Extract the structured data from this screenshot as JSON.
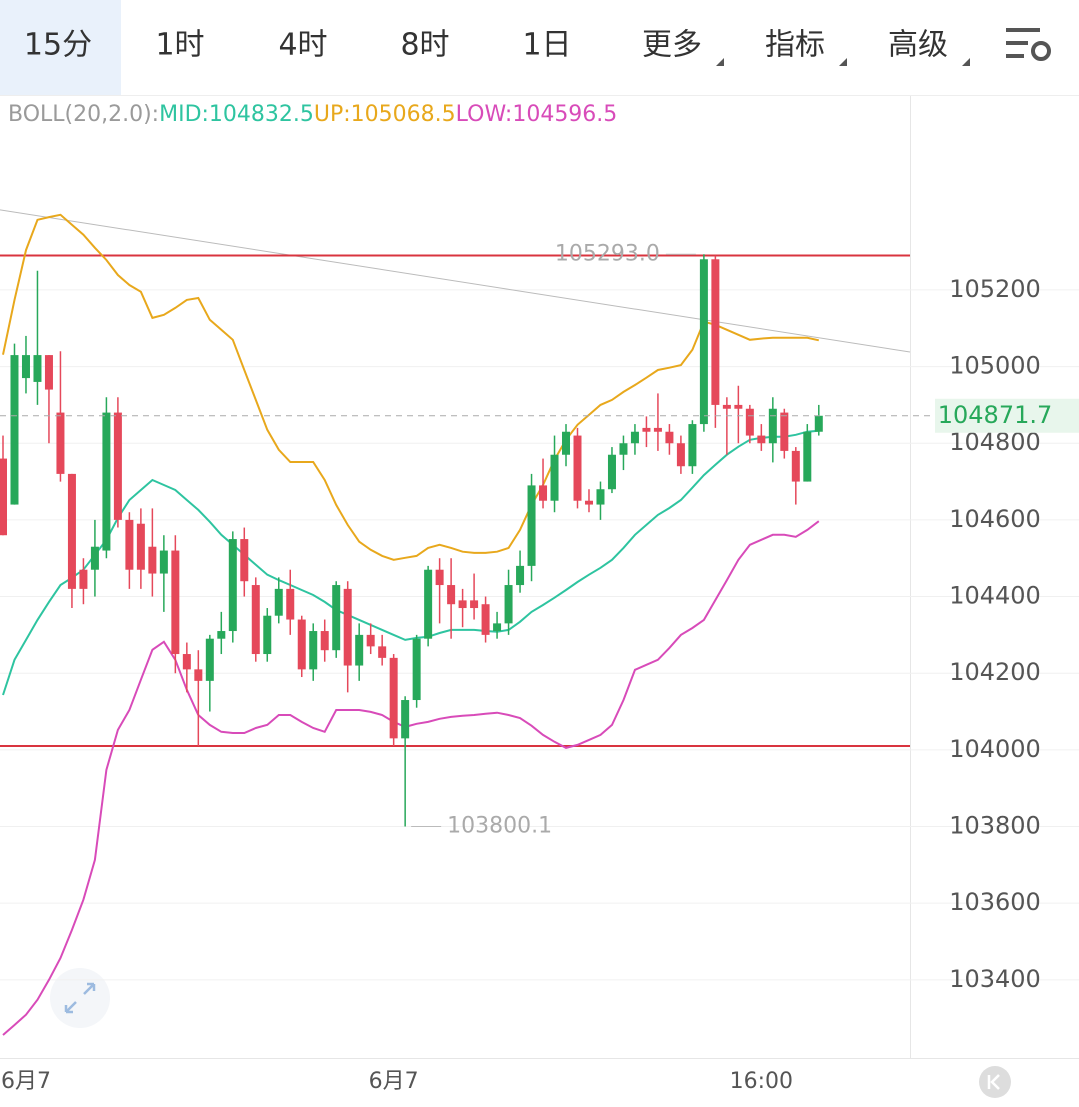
{
  "tabs": [
    "15分",
    "1时",
    "4时",
    "8时",
    "1日",
    "更多",
    "指标",
    "高级"
  ],
  "chart_data": {
    "type": "candlestick",
    "legend": [
      {
        "text": "BOLL(20,2.0):",
        "color": "#9a9a9a"
      },
      {
        "text": "MID:104832.5",
        "color": "#2ec4a0"
      },
      {
        "text": "UP:105068.5",
        "color": "#e8a81c"
      },
      {
        "text": "LOW:104596.5",
        "color": "#d84bb9"
      }
    ],
    "categories": [
      null,
      null,
      "6月7",
      null,
      null,
      null,
      null,
      null,
      null,
      null,
      null,
      null,
      null,
      null,
      null,
      null,
      null,
      null,
      null,
      null,
      null,
      null,
      null,
      null,
      null,
      null,
      null,
      null,
      null,
      null,
      null,
      null,
      null,
      null,
      "6月7",
      null,
      null,
      null,
      null,
      null,
      null,
      null,
      null,
      null,
      null,
      null,
      null,
      null,
      null,
      null,
      null,
      null,
      null,
      null,
      null,
      null,
      null,
      null,
      null,
      null,
      null,
      null,
      null,
      null,
      null,
      null,
      "16:00",
      null,
      null,
      null,
      null,
      null
    ],
    "open": [
      104760,
      104640,
      104970,
      104960,
      105030,
      104880,
      104720,
      104470,
      104470,
      104520,
      104880,
      104600,
      104590,
      104530,
      104460,
      104520,
      104250,
      104210,
      104180,
      104290,
      104310,
      104550,
      104430,
      104250,
      104350,
      104420,
      104340,
      104210,
      104310,
      104260,
      104420,
      104220,
      104300,
      104270,
      104240,
      104030,
      104130,
      104290,
      104470,
      104430,
      104390,
      104390,
      104380,
      104310,
      104330,
      104430,
      104480,
      104690,
      104650,
      104770,
      104820,
      104650,
      104640,
      104680,
      104770,
      104800,
      104840,
      104840,
      104830,
      104800,
      104740,
      104850,
      105280,
      104900,
      104900,
      104890,
      104820,
      104800,
      104880,
      104780,
      104700,
      104830
    ],
    "close": [
      104560,
      105030,
      105030,
      105030,
      104940,
      104720,
      104420,
      104420,
      104530,
      104880,
      104600,
      104470,
      104470,
      104460,
      104520,
      104250,
      104210,
      104180,
      104290,
      104310,
      104550,
      104440,
      104250,
      104350,
      104420,
      104340,
      104210,
      104310,
      104260,
      104430,
      104220,
      104300,
      104270,
      104240,
      104030,
      104130,
      104290,
      104470,
      104430,
      104380,
      104370,
      104370,
      104300,
      104330,
      104430,
      104480,
      104690,
      104650,
      104770,
      104830,
      104650,
      104640,
      104680,
      104770,
      104800,
      104830,
      104830,
      104830,
      104800,
      104740,
      104850,
      105280,
      104900,
      104890,
      104890,
      104820,
      104800,
      104890,
      104780,
      104700,
      104830,
      104871.7
    ],
    "high": [
      104820,
      105060,
      105080,
      105250,
      105030,
      105040,
      104720,
      104500,
      104600,
      104920,
      104920,
      104620,
      104630,
      104630,
      104560,
      104560,
      104280,
      104260,
      104300,
      104360,
      104570,
      104580,
      104450,
      104370,
      104450,
      104470,
      104350,
      104330,
      104340,
      104440,
      104440,
      104330,
      104330,
      104300,
      104250,
      104140,
      104300,
      104480,
      104500,
      104500,
      104420,
      104460,
      104400,
      104360,
      104470,
      104520,
      104720,
      104760,
      104820,
      104850,
      104840,
      104680,
      104700,
      104790,
      104820,
      104850,
      104870,
      104930,
      104850,
      104820,
      104860,
      105293,
      105290,
      104920,
      104950,
      104900,
      104850,
      104920,
      104890,
      104790,
      104850,
      104900
    ],
    "low": [
      104560,
      104640,
      104930,
      104900,
      104800,
      104700,
      104370,
      104380,
      104400,
      104500,
      104580,
      104420,
      104420,
      104400,
      104360,
      104200,
      104150,
      104010,
      104100,
      104250,
      104280,
      104400,
      104230,
      104230,
      104330,
      104300,
      104190,
      104180,
      104230,
      104240,
      104150,
      104180,
      104250,
      104220,
      104010,
      103800.1,
      104110,
      104270,
      104330,
      104290,
      104320,
      104340,
      104280,
      104290,
      104300,
      104410,
      104440,
      104630,
      104620,
      104740,
      104630,
      104620,
      104600,
      104670,
      104730,
      104770,
      104790,
      104780,
      104770,
      104720,
      104720,
      104830,
      104840,
      104770,
      104800,
      104800,
      104780,
      104750,
      104760,
      104640,
      104700,
      104820
    ],
    "up_color": "#27a85a",
    "down_color": "#e5485a",
    "bands": [
      {
        "color": "#2ec4a0",
        "values": [
          104143,
          104235,
          104287,
          104339,
          104386,
          104430,
          104449,
          104470,
          104509,
          104548,
          104605,
          104652,
          104678,
          104704,
          104691,
          104678,
          104652,
          104626,
          104595,
          104561,
          104535,
          104509,
          104483,
          104457,
          104443,
          104430,
          104417,
          104404,
          104386,
          104365,
          104352,
          104339,
          104326,
          104313,
          104300,
          104287,
          104292,
          104295,
          104305,
          104313,
          104313,
          104313,
          104310,
          104308,
          104313,
          104334,
          104360,
          104378,
          104397,
          104417,
          104438,
          104457,
          104475,
          104496,
          104527,
          104561,
          104587,
          104613,
          104631,
          104652,
          104684,
          104717,
          104744,
          104770,
          104791,
          104809,
          104814,
          104817,
          104817,
          104822,
          104830,
          104832.5
        ]
      },
      {
        "color": "#e8a81c",
        "values": [
          105031,
          105174,
          105304,
          105383,
          105390,
          105396,
          105370,
          105344,
          105310,
          105278,
          105239,
          105213,
          105195,
          105127,
          105135,
          105153,
          105174,
          105179,
          105122,
          105096,
          105070,
          104991,
          104913,
          104835,
          104783,
          104751,
          104751,
          104751,
          104704,
          104639,
          104587,
          104543,
          104522,
          104506,
          104496,
          104501,
          104506,
          104527,
          104535,
          104527,
          104517,
          104514,
          104514,
          104517,
          104527,
          104574,
          104639,
          104691,
          104757,
          104809,
          104848,
          104874,
          104900,
          104913,
          104934,
          104952,
          104971,
          104991,
          104997,
          105004,
          105044,
          105117,
          105109,
          105096,
          105083,
          105070,
          105073,
          105075,
          105075,
          105075,
          105075,
          105068.5
        ]
      },
      {
        "color": "#d84bb9",
        "values": [
          103256,
          103282,
          103309,
          103348,
          103400,
          103457,
          103530,
          103609,
          103713,
          103948,
          104052,
          104104,
          104183,
          104261,
          104282,
          104235,
          104157,
          104091,
          104065,
          104047,
          104044,
          104044,
          104057,
          104065,
          104091,
          104091,
          104073,
          104057,
          104047,
          104104,
          104104,
          104104,
          104099,
          104091,
          104073,
          104060,
          104068,
          104073,
          104081,
          104086,
          104089,
          104091,
          104094,
          104097,
          104091,
          104083,
          104063,
          104039,
          104021,
          104005,
          104013,
          104026,
          104039,
          104065,
          104130,
          104209,
          104222,
          104235,
          104266,
          104300,
          104318,
          104339,
          104391,
          104443,
          104496,
          104535,
          104548,
          104561,
          104561,
          104556,
          104574,
          104596.5
        ]
      }
    ],
    "hlines": [
      105290,
      104010
    ],
    "hline_color": "#d9343f",
    "trendline": [
      105409,
      105038
    ],
    "annotations": [
      {
        "value": 105293,
        "label": "105293.0"
      },
      {
        "value": 103800.1,
        "label": "103800.1"
      }
    ],
    "ylim": [
      103196,
      105706
    ],
    "yticks": [
      103400,
      103600,
      103800,
      104000,
      104200,
      104400,
      104600,
      104800,
      105000,
      105200
    ],
    "grid": true
  }
}
